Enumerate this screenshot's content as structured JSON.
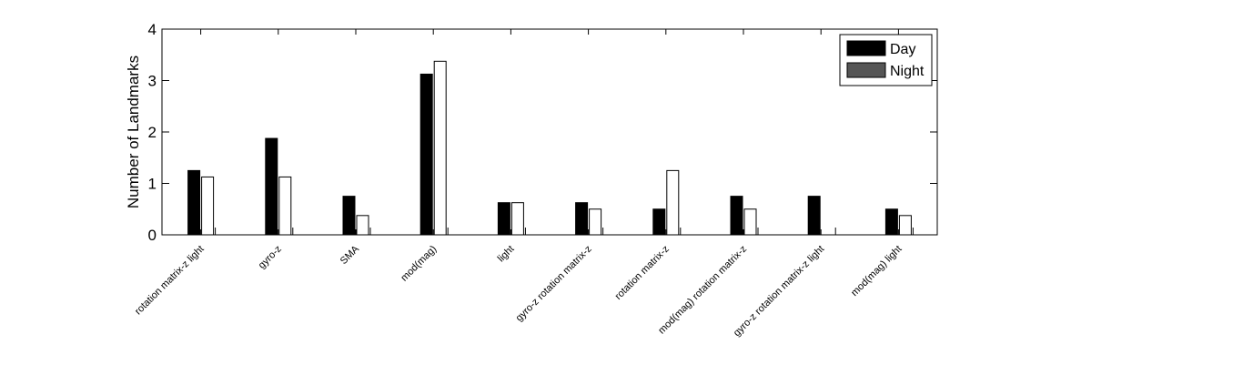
{
  "chart_data": {
    "type": "bar",
    "title": "",
    "xlabel": "",
    "ylabel": "Number of Landmarks",
    "ylim": [
      0,
      4
    ],
    "yticks": [
      0,
      1,
      2,
      3,
      4
    ],
    "grid": false,
    "legend_position": "top-right",
    "categories": [
      "rotation matrix-z  light",
      "gyro-z",
      "SMA",
      "mod(mag)",
      "light",
      "gyro-z  rotation matrix-z",
      "rotation matrix-z",
      "mod(mag)  rotation matrix-z",
      "gyro-z  rotation matrix-z  light",
      "mod(mag)  light"
    ],
    "series": [
      {
        "name": "Day",
        "color": "#000000",
        "values": [
          1.25,
          1.875,
          0.75,
          3.125,
          0.625,
          0.625,
          0.5,
          0.75,
          0.75,
          0.5
        ]
      },
      {
        "name": "Night",
        "color": "#ffffff",
        "legend_color": "#555555",
        "values": [
          1.125,
          1.125,
          0.375,
          3.375,
          0.625,
          0.5,
          1.25,
          0.5,
          0,
          0.375
        ]
      }
    ]
  }
}
